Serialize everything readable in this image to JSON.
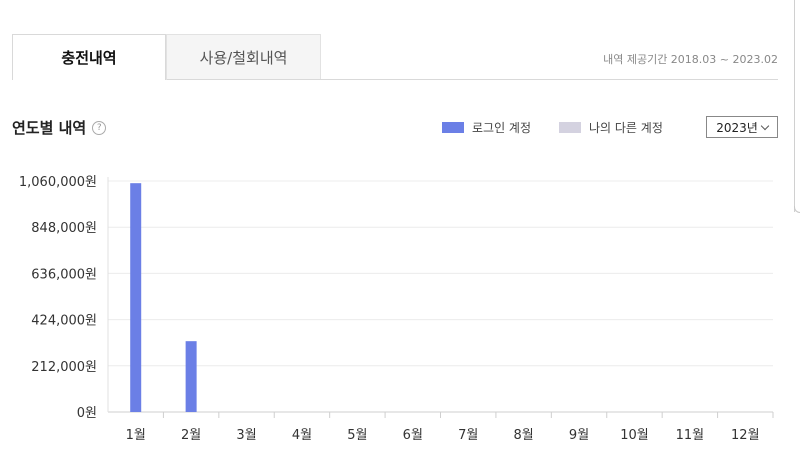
{
  "tabs": [
    {
      "label": "충전내역",
      "active": true
    },
    {
      "label": "사용/철회내역",
      "active": false
    }
  ],
  "period_text": "내역 제공기간 2018.03 ~ 2023.02",
  "section": {
    "title": "연도별 내역",
    "help_icon": "question-circle-icon",
    "help_glyph": "?"
  },
  "legend": [
    {
      "label": "로그인 계정",
      "color": "#6b7fe6"
    },
    {
      "label": "나의 다른 계정",
      "color": "#d4d2e0"
    }
  ],
  "year_select": {
    "value": "2023년"
  },
  "chart_data": {
    "type": "bar",
    "categories": [
      "1월",
      "2월",
      "3월",
      "4월",
      "5월",
      "6월",
      "7월",
      "8월",
      "9월",
      "10월",
      "11월",
      "12월"
    ],
    "series": [
      {
        "name": "로그인 계정",
        "color": "#6b7fe6",
        "values": [
          1050000,
          325000,
          0,
          0,
          0,
          0,
          0,
          0,
          0,
          0,
          0,
          0
        ]
      },
      {
        "name": "나의 다른 계정",
        "color": "#d4d2e0",
        "values": [
          0,
          0,
          0,
          0,
          0,
          0,
          0,
          0,
          0,
          0,
          0,
          0
        ]
      }
    ],
    "yticks": [
      0,
      212000,
      424000,
      636000,
      848000,
      1060000
    ],
    "ytick_labels": [
      "0원",
      "212,000원",
      "424,000원",
      "636,000원",
      "848,000원",
      "1,060,000원"
    ],
    "ylim": [
      0,
      1060000
    ],
    "grid": true
  }
}
